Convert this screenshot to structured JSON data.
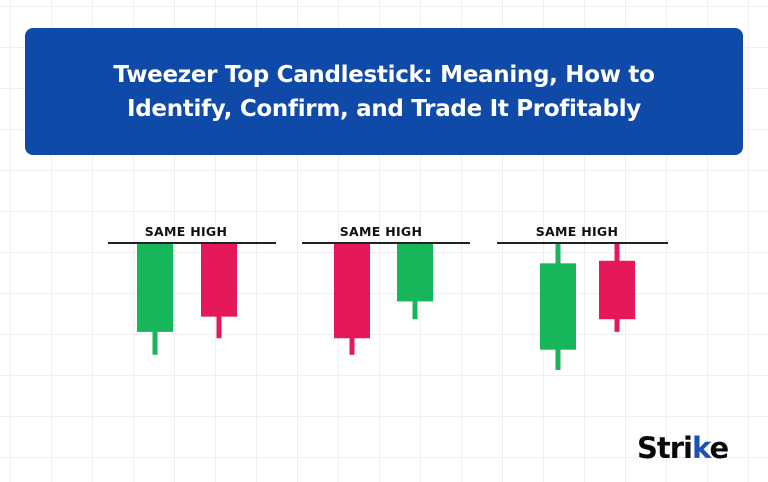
{
  "header": {
    "title_line1": "Tweezer Top Candlestick: Meaning, How to",
    "title_line2": "Identify, Confirm, and Trade It Profitably"
  },
  "colors": {
    "banner": "#0f4aa8",
    "bullish": "#17b65a",
    "bearish": "#e5185a",
    "line": "#222222"
  },
  "patterns": [
    {
      "label": "SAME HIGH",
      "candles": [
        {
          "color": "bullish",
          "open": 30,
          "close": 100,
          "high": 100,
          "low": 12
        },
        {
          "color": "bearish",
          "open": 100,
          "close": 42,
          "high": 100,
          "low": 25
        }
      ]
    },
    {
      "label": "SAME HIGH",
      "candles": [
        {
          "color": "bearish",
          "open": 100,
          "close": 25,
          "high": 100,
          "low": 12
        },
        {
          "color": "bullish",
          "open": 54,
          "close": 100,
          "high": 100,
          "low": 40
        }
      ]
    },
    {
      "label": "SAME HIGH",
      "candles": [
        {
          "color": "bullish",
          "open": 16,
          "close": 84,
          "high": 100,
          "low": 0
        },
        {
          "color": "bearish",
          "open": 86,
          "close": 40,
          "high": 100,
          "low": 30
        }
      ]
    }
  ],
  "brand": {
    "logo_main": "Stri",
    "logo_accent": "k",
    "logo_end": "e"
  }
}
